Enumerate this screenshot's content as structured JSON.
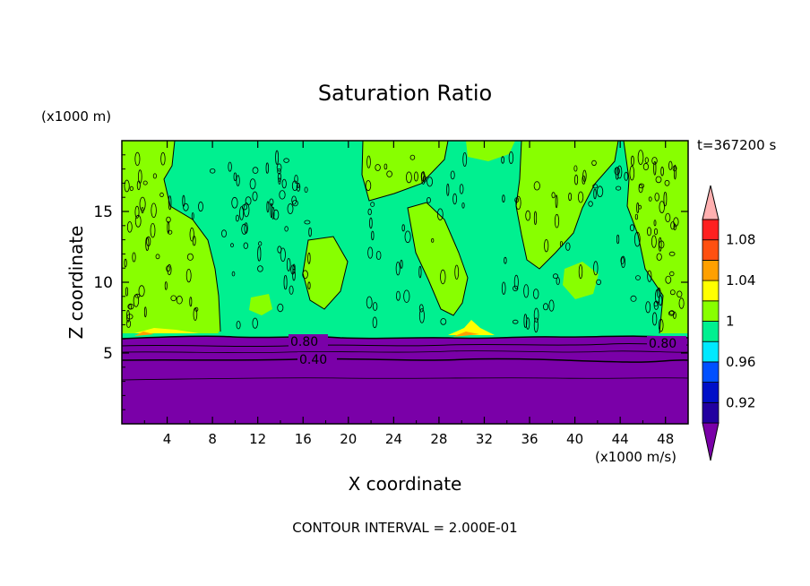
{
  "chart_data": {
    "type": "contour",
    "title": "Saturation Ratio",
    "xlabel": "X coordinate",
    "ylabel": "Z coordinate",
    "x_units": "(x1000 m/s)",
    "y_units": "(x1000 m)",
    "time_label": "t=367200 s",
    "footer": "CONTOUR INTERVAL = 2.000E-01",
    "xlim": [
      0,
      50
    ],
    "ylim": [
      0,
      20
    ],
    "x_ticks": [
      "4",
      "8",
      "12",
      "16",
      "20",
      "24",
      "28",
      "32",
      "36",
      "40",
      "44",
      "48"
    ],
    "y_ticks": [
      "5",
      "10",
      "15"
    ],
    "contour_labels": [
      "0.80",
      "0.40",
      "0.80"
    ],
    "colorbar": {
      "levels": [
        0.9,
        0.92,
        0.94,
        0.96,
        0.98,
        1.0,
        1.02,
        1.04,
        1.06,
        1.08,
        1.1
      ],
      "tick_labels": [
        "0.92",
        "0.96",
        "1",
        "1.04",
        "1.08"
      ],
      "colors": [
        "#7a00a8",
        "#2200a0",
        "#0010c8",
        "#0050ff",
        "#00e8ff",
        "#00f090",
        "#88ff00",
        "#ffff00",
        "#ffa000",
        "#ff5010",
        "#ff2020",
        "#ffb0b0"
      ]
    },
    "boundary_height_km": 6.0,
    "lower_layer_value": "< 0.90"
  }
}
